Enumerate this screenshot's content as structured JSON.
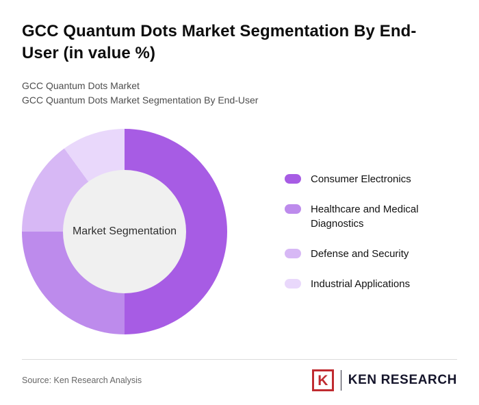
{
  "page": {
    "title": "GCC Quantum Dots Market Segmentation By End-User (in value %)",
    "subtitle_line1": "GCC Quantum Dots Market",
    "subtitle_line2": "GCC Quantum Dots Market Segmentation By End-User",
    "source": "Source: Ken Research Analysis"
  },
  "logo": {
    "letter": "K",
    "brand": "KEN RESEARCH",
    "accent_color": "#c02b30",
    "text_color": "#15152b"
  },
  "chart_data": {
    "type": "pie",
    "donut": true,
    "title": "GCC Quantum Dots Market Segmentation By End-User (in value %)",
    "center_label": "Market Segmentation",
    "categories": [
      "Consumer Electronics",
      "Healthcare and Medical Diagnostics",
      "Defense and Security",
      "Industrial Applications"
    ],
    "values": [
      50,
      25,
      15,
      10
    ],
    "colors": [
      "#a75ce4",
      "#bd8bec",
      "#d7b8f5",
      "#e9d8fb"
    ],
    "center_fill": "#f0f0f0",
    "legend_position": "right",
    "start_angle_deg": 0,
    "direction": "clockwise"
  }
}
